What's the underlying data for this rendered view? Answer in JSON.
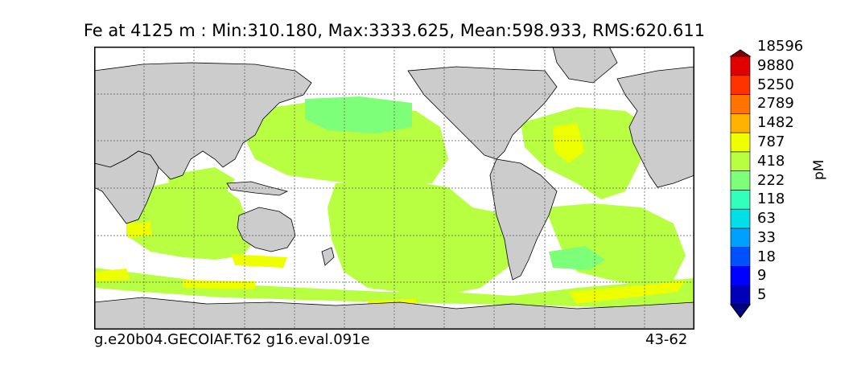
{
  "title": "Fe at 4125 m : Min:310.180, Max:3333.625, Mean:598.933, RMS:620.611",
  "footer": {
    "case_name": "g.e20b04.GECOIAF.T62 g16.eval.091e",
    "years": "43-62"
  },
  "colorbar": {
    "units": "pM",
    "levels": [
      "5",
      "9",
      "18",
      "33",
      "63",
      "118",
      "222",
      "418",
      "787",
      "1482",
      "2789",
      "5250",
      "9880",
      "18596"
    ],
    "colors": [
      "#000080",
      "#0000b8",
      "#0000ff",
      "#0050ff",
      "#00a0ff",
      "#00e0e6",
      "#33ffbd",
      "#7dff7a",
      "#b8ff42",
      "#eeff00",
      "#ffb300",
      "#ff7300",
      "#ff3300",
      "#e00000",
      "#800000"
    ]
  },
  "map": {
    "land_color": "#cccccc",
    "ocean_color": "#ffffff",
    "grid": true,
    "field_colors": {
      "low": "#b8ff42",
      "mid": "#7dff7a",
      "high": "#eeff00"
    }
  }
}
